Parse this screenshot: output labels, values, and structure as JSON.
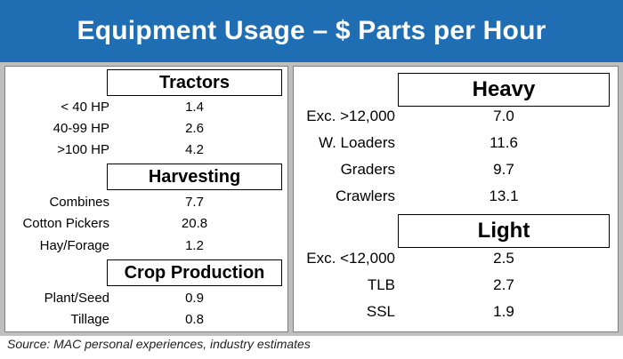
{
  "title": "Equipment Usage – $ Parts per Hour",
  "left_panel": {
    "tractors": {
      "header": "Tractors",
      "rows": [
        {
          "label": "< 40 HP",
          "value": "1.4"
        },
        {
          "label": "40-99 HP",
          "value": "2.6"
        },
        {
          "label": ">100 HP",
          "value": "4.2"
        }
      ]
    },
    "harvesting": {
      "header": "Harvesting",
      "rows": [
        {
          "label": "Combines",
          "value": "7.7"
        },
        {
          "label": "Cotton Pickers",
          "value": "20.8"
        },
        {
          "label": "Hay/Forage",
          "value": "1.2"
        }
      ]
    },
    "crop_production": {
      "header": "Crop Production",
      "rows": [
        {
          "label": "Plant/Seed",
          "value": "0.9"
        },
        {
          "label": "Tillage",
          "value": "0.8"
        }
      ]
    }
  },
  "right_panel": {
    "heavy": {
      "header": "Heavy",
      "rows": [
        {
          "label": "Exc. >12,000",
          "value": "7.0"
        },
        {
          "label": "W. Loaders",
          "value": "11.6"
        },
        {
          "label": "Graders",
          "value": "9.7"
        },
        {
          "label": "Crawlers",
          "value": "13.1"
        }
      ]
    },
    "light": {
      "header": "Light",
      "rows": [
        {
          "label": "Exc. <12,000",
          "value": "2.5"
        },
        {
          "label": "TLB",
          "value": "2.7"
        },
        {
          "label": "SSL",
          "value": "1.9"
        }
      ]
    }
  },
  "source": "Source: MAC personal experiences, industry estimates",
  "colors": {
    "banner": "#1f6eb4",
    "frame": "#bfbfbf",
    "text": "#000000"
  }
}
